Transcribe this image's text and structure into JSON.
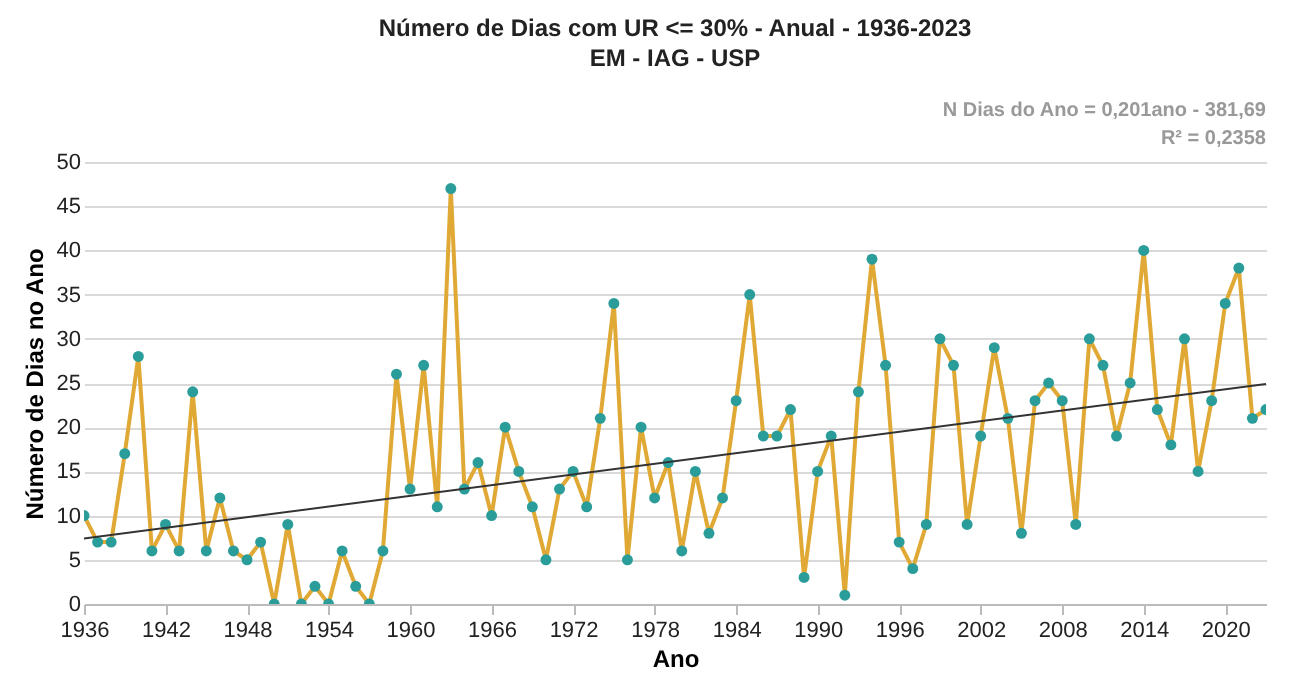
{
  "chart_data": {
    "type": "line",
    "title": "Número de Dias com UR <= 30% - Anual - 1936-2023",
    "subtitle": "EM - IAG - USP",
    "xlabel": "Ano",
    "ylabel": "Número de Dias no Ano",
    "x": [
      1936,
      1937,
      1938,
      1939,
      1940,
      1941,
      1942,
      1943,
      1944,
      1945,
      1946,
      1947,
      1948,
      1949,
      1950,
      1951,
      1952,
      1953,
      1954,
      1955,
      1956,
      1957,
      1958,
      1959,
      1960,
      1961,
      1962,
      1963,
      1964,
      1965,
      1966,
      1967,
      1968,
      1969,
      1970,
      1971,
      1972,
      1973,
      1974,
      1975,
      1976,
      1977,
      1978,
      1979,
      1980,
      1981,
      1982,
      1983,
      1984,
      1985,
      1986,
      1987,
      1988,
      1989,
      1990,
      1991,
      1992,
      1993,
      1994,
      1995,
      1996,
      1997,
      1998,
      1999,
      2000,
      2001,
      2002,
      2003,
      2004,
      2005,
      2006,
      2007,
      2008,
      2009,
      2010,
      2011,
      2012,
      2013,
      2014,
      2015,
      2016,
      2017,
      2018,
      2019,
      2020,
      2021,
      2022,
      2023
    ],
    "series": [
      {
        "color": "#e0a935",
        "values": [
          10,
          7,
          7,
          17,
          28,
          6,
          9,
          6,
          24,
          6,
          12,
          6,
          5,
          7,
          0,
          9,
          0,
          2,
          0,
          6,
          2,
          0,
          6,
          26,
          13,
          27,
          11,
          47,
          13,
          16,
          10,
          20,
          15,
          11,
          5,
          13,
          15,
          11,
          21,
          34,
          5,
          20,
          12,
          16,
          6,
          15,
          8,
          12,
          23,
          35,
          19,
          19,
          22,
          3,
          15,
          19,
          1,
          24,
          39,
          27,
          7,
          4,
          9,
          30,
          27,
          9,
          19,
          29,
          21,
          8,
          23,
          25,
          23,
          9,
          30,
          27,
          19,
          25,
          40,
          22,
          18,
          30,
          15,
          23,
          34,
          38,
          21,
          22
        ]
      },
      {
        "type": "line",
        "color": "#333333",
        "marker": "none",
        "x": [
          1936,
          2023
        ],
        "values": [
          7.4,
          24.9
        ]
      }
    ],
    "annotations": [
      "N Dias do Ano = 0,201ano - 381,69",
      "R² = 0,2358"
    ],
    "xlim": [
      1936,
      2023
    ],
    "xticks": [
      1936,
      1942,
      1948,
      1954,
      1960,
      1966,
      1972,
      1978,
      1984,
      1990,
      1996,
      2002,
      2008,
      2014,
      2020
    ],
    "ylim": [
      0,
      50
    ],
    "yticks": [
      0,
      5,
      10,
      15,
      20,
      25,
      30,
      35,
      40,
      45,
      50
    ],
    "grid": "y",
    "marker": "circle"
  }
}
